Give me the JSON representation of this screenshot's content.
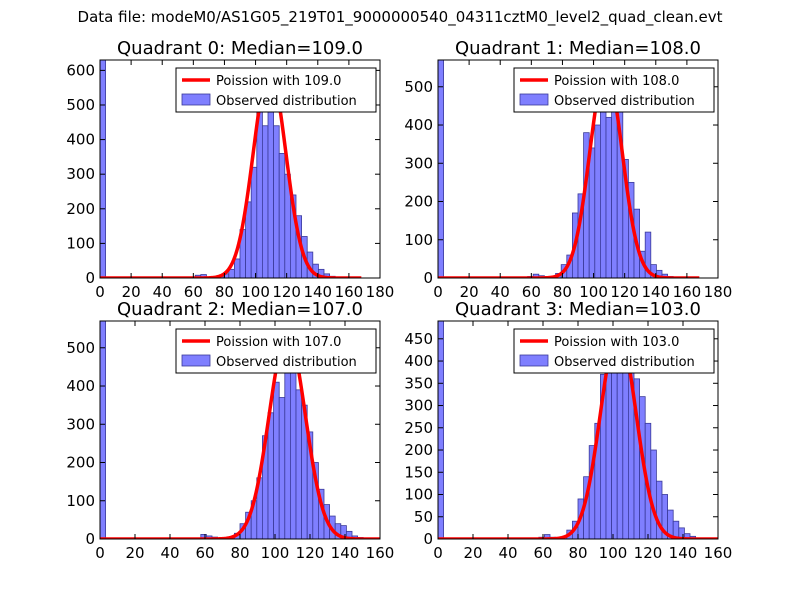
{
  "suptitle": "Data file: modeM0/AS1G05_219T01_9000000540_04311cztM0_level2_quad_clean.evt",
  "colors": {
    "observed_fill": "#7f7fff",
    "observed_edge": "#3a3a9a",
    "poisson_line": "#ff0000"
  },
  "chart_data": [
    {
      "type": "bar+line",
      "title": "Quadrant 0: Median=109.0",
      "xlim": [
        0,
        180
      ],
      "ylim": [
        0,
        630
      ],
      "xticks": [
        "0",
        "20",
        "40",
        "60",
        "80",
        "100",
        "120",
        "140",
        "160",
        "180"
      ],
      "yticks": [
        "0",
        "100",
        "200",
        "300",
        "400",
        "500",
        "600"
      ],
      "legend": {
        "position": "top-right",
        "line_label": "Poission with 109.0",
        "bar_label": "Observed distribution"
      },
      "bin_width": 3.6,
      "bins": [
        {
          "x": 0,
          "y": 630
        },
        {
          "x": 57.6,
          "y": 3
        },
        {
          "x": 61.2,
          "y": 8
        },
        {
          "x": 64.8,
          "y": 10
        },
        {
          "x": 72,
          "y": 3
        },
        {
          "x": 75.6,
          "y": 6
        },
        {
          "x": 79.2,
          "y": 12
        },
        {
          "x": 82.8,
          "y": 25
        },
        {
          "x": 86.4,
          "y": 55
        },
        {
          "x": 90,
          "y": 140
        },
        {
          "x": 93.6,
          "y": 220
        },
        {
          "x": 97.2,
          "y": 320
        },
        {
          "x": 100.8,
          "y": 500
        },
        {
          "x": 104.4,
          "y": 440
        },
        {
          "x": 108,
          "y": 560
        },
        {
          "x": 111.6,
          "y": 440
        },
        {
          "x": 115.2,
          "y": 360
        },
        {
          "x": 118.8,
          "y": 300
        },
        {
          "x": 122.4,
          "y": 240
        },
        {
          "x": 126,
          "y": 180
        },
        {
          "x": 129.6,
          "y": 120
        },
        {
          "x": 133.2,
          "y": 75
        },
        {
          "x": 136.8,
          "y": 40
        },
        {
          "x": 140.4,
          "y": 25
        },
        {
          "x": 144,
          "y": 12
        },
        {
          "x": 147.6,
          "y": 5
        }
      ],
      "poisson": {
        "mean": 109.0,
        "peak": 600
      }
    },
    {
      "type": "bar+line",
      "title": "Quadrant 1: Median=108.0",
      "xlim": [
        0,
        180
      ],
      "ylim": [
        0,
        570
      ],
      "xticks": [
        "0",
        "20",
        "40",
        "60",
        "80",
        "100",
        "120",
        "140",
        "160",
        "180"
      ],
      "yticks": [
        "0",
        "100",
        "200",
        "300",
        "400",
        "500"
      ],
      "legend": {
        "position": "top-right",
        "line_label": "Poission with 108.0",
        "bar_label": "Observed distribution"
      },
      "bin_width": 3.6,
      "bins": [
        {
          "x": 0,
          "y": 570
        },
        {
          "x": 57.6,
          "y": 4
        },
        {
          "x": 61.2,
          "y": 10
        },
        {
          "x": 64.8,
          "y": 6
        },
        {
          "x": 72,
          "y": 4
        },
        {
          "x": 75.6,
          "y": 12
        },
        {
          "x": 79.2,
          "y": 35
        },
        {
          "x": 82.8,
          "y": 60
        },
        {
          "x": 86.4,
          "y": 170
        },
        {
          "x": 90,
          "y": 220
        },
        {
          "x": 93.6,
          "y": 380
        },
        {
          "x": 97.2,
          "y": 340
        },
        {
          "x": 100.8,
          "y": 400
        },
        {
          "x": 104.4,
          "y": 500
        },
        {
          "x": 108,
          "y": 420
        },
        {
          "x": 111.6,
          "y": 510
        },
        {
          "x": 115.2,
          "y": 440
        },
        {
          "x": 118.8,
          "y": 310
        },
        {
          "x": 122.4,
          "y": 250
        },
        {
          "x": 126,
          "y": 180
        },
        {
          "x": 129.6,
          "y": 70
        },
        {
          "x": 133.2,
          "y": 120
        },
        {
          "x": 136.8,
          "y": 35
        },
        {
          "x": 140.4,
          "y": 20
        },
        {
          "x": 144,
          "y": 10
        },
        {
          "x": 147.6,
          "y": 4
        }
      ],
      "poisson": {
        "mean": 108.0,
        "peak": 545
      }
    },
    {
      "type": "bar+line",
      "title": "Quadrant 2: Median=107.0",
      "xlim": [
        0,
        160
      ],
      "ylim": [
        0,
        570
      ],
      "xticks": [
        "0",
        "20",
        "40",
        "60",
        "80",
        "100",
        "120",
        "140",
        "160"
      ],
      "yticks": [
        "0",
        "100",
        "200",
        "300",
        "400",
        "500"
      ],
      "legend": {
        "position": "top-right",
        "line_label": "Poission with 107.0",
        "bar_label": "Observed distribution"
      },
      "bin_width": 3.2,
      "bins": [
        {
          "x": 0,
          "y": 570
        },
        {
          "x": 57.6,
          "y": 12
        },
        {
          "x": 60.8,
          "y": 8
        },
        {
          "x": 64,
          "y": 5
        },
        {
          "x": 73.6,
          "y": 3
        },
        {
          "x": 76.8,
          "y": 15
        },
        {
          "x": 80,
          "y": 40
        },
        {
          "x": 83.2,
          "y": 70
        },
        {
          "x": 86.4,
          "y": 100
        },
        {
          "x": 89.6,
          "y": 160
        },
        {
          "x": 92.8,
          "y": 270
        },
        {
          "x": 96,
          "y": 330
        },
        {
          "x": 99.2,
          "y": 410
        },
        {
          "x": 102.4,
          "y": 370
        },
        {
          "x": 105.6,
          "y": 480
        },
        {
          "x": 108.8,
          "y": 490
        },
        {
          "x": 112,
          "y": 390
        },
        {
          "x": 115.2,
          "y": 350
        },
        {
          "x": 118.4,
          "y": 280
        },
        {
          "x": 121.6,
          "y": 200
        },
        {
          "x": 124.8,
          "y": 130
        },
        {
          "x": 128,
          "y": 90
        },
        {
          "x": 131.2,
          "y": 60
        },
        {
          "x": 134.4,
          "y": 40
        },
        {
          "x": 137.6,
          "y": 35
        },
        {
          "x": 140.8,
          "y": 20
        },
        {
          "x": 144,
          "y": 8
        },
        {
          "x": 147.2,
          "y": 4
        }
      ],
      "poisson": {
        "mean": 107.0,
        "peak": 535
      }
    },
    {
      "type": "bar+line",
      "title": "Quadrant 3: Median=103.0",
      "xlim": [
        0,
        160
      ],
      "ylim": [
        0,
        490
      ],
      "xticks": [
        "0",
        "20",
        "40",
        "60",
        "80",
        "100",
        "120",
        "140",
        "160"
      ],
      "yticks": [
        "0",
        "50",
        "100",
        "150",
        "200",
        "250",
        "300",
        "350",
        "400",
        "450"
      ],
      "legend": {
        "position": "top-right",
        "line_label": "Poission with 103.0",
        "bar_label": "Observed distribution"
      },
      "bin_width": 3.2,
      "bins": [
        {
          "x": 0,
          "y": 490
        },
        {
          "x": 57.6,
          "y": 4
        },
        {
          "x": 60.8,
          "y": 10
        },
        {
          "x": 64,
          "y": 4
        },
        {
          "x": 70.4,
          "y": 4
        },
        {
          "x": 73.6,
          "y": 20
        },
        {
          "x": 76.8,
          "y": 40
        },
        {
          "x": 80,
          "y": 90
        },
        {
          "x": 83.2,
          "y": 140
        },
        {
          "x": 86.4,
          "y": 210
        },
        {
          "x": 89.6,
          "y": 260
        },
        {
          "x": 92.8,
          "y": 370
        },
        {
          "x": 96,
          "y": 420
        },
        {
          "x": 99.2,
          "y": 450
        },
        {
          "x": 102.4,
          "y": 410
        },
        {
          "x": 105.6,
          "y": 440
        },
        {
          "x": 108.8,
          "y": 390
        },
        {
          "x": 112,
          "y": 360
        },
        {
          "x": 115.2,
          "y": 320
        },
        {
          "x": 118.4,
          "y": 260
        },
        {
          "x": 121.6,
          "y": 200
        },
        {
          "x": 124.8,
          "y": 130
        },
        {
          "x": 128,
          "y": 100
        },
        {
          "x": 131.2,
          "y": 65
        },
        {
          "x": 134.4,
          "y": 40
        },
        {
          "x": 137.6,
          "y": 25
        },
        {
          "x": 140.8,
          "y": 12
        },
        {
          "x": 144,
          "y": 6
        }
      ],
      "poisson": {
        "mean": 103.0,
        "peak": 468
      }
    }
  ]
}
